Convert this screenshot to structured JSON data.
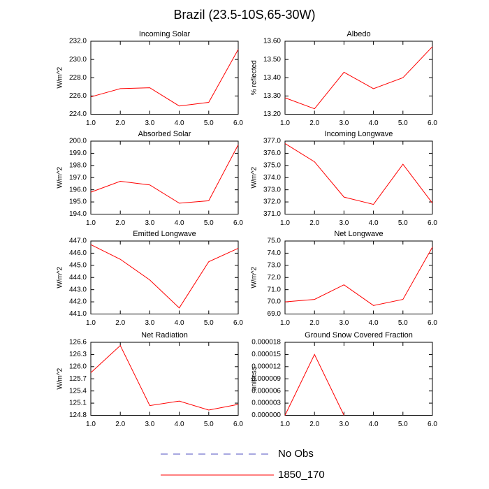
{
  "title": "Brazil (23.5-10S,65-30W)",
  "legend": [
    {
      "name": "No Obs",
      "color": "#5050c0",
      "dash": true
    },
    {
      "name": "1850_170",
      "color": "#ff0000",
      "dash": false
    }
  ],
  "chart_data": [
    {
      "type": "line",
      "title": "Incoming Solar",
      "y_label": "W/m^2",
      "x": [
        1,
        2,
        3,
        4,
        5,
        6
      ],
      "values": [
        225.9,
        226.8,
        226.9,
        224.9,
        225.3,
        231.1
      ],
      "color": "#ff0000",
      "xlim": [
        1,
        6
      ],
      "xticks": [
        {
          "value": 1,
          "label": "1.0"
        },
        {
          "value": 2,
          "label": "2.0"
        },
        {
          "value": 3,
          "label": "3.0"
        },
        {
          "value": 4,
          "label": "4.0"
        },
        {
          "value": 5,
          "label": "5.0"
        },
        {
          "value": 6,
          "label": "6.0"
        }
      ],
      "ylim": [
        224,
        232
      ],
      "yticks": [
        {
          "value": 224,
          "label": "224.0"
        },
        {
          "value": 226,
          "label": "226.0"
        },
        {
          "value": 228,
          "label": "228.0"
        },
        {
          "value": 230,
          "label": "230.0"
        },
        {
          "value": 232,
          "label": "232.0"
        }
      ]
    },
    {
      "type": "line",
      "title": "Albedo",
      "y_label": "% reflected",
      "x": [
        1,
        2,
        3,
        4,
        5,
        6
      ],
      "values": [
        13.29,
        13.23,
        13.43,
        13.34,
        13.4,
        13.57
      ],
      "color": "#ff0000",
      "xlim": [
        1,
        6
      ],
      "xticks": [
        {
          "value": 1,
          "label": "1.0"
        },
        {
          "value": 2,
          "label": "2.0"
        },
        {
          "value": 3,
          "label": "3.0"
        },
        {
          "value": 4,
          "label": "4.0"
        },
        {
          "value": 5,
          "label": "5.0"
        },
        {
          "value": 6,
          "label": "6.0"
        }
      ],
      "ylim": [
        13.2,
        13.6
      ],
      "yticks": [
        {
          "value": 13.2,
          "label": "13.20"
        },
        {
          "value": 13.3,
          "label": "13.30"
        },
        {
          "value": 13.4,
          "label": "13.40"
        },
        {
          "value": 13.5,
          "label": "13.50"
        },
        {
          "value": 13.6,
          "label": "13.60"
        }
      ]
    },
    {
      "type": "line",
      "title": "Absorbed Solar",
      "y_label": "W/m^2",
      "x": [
        1,
        2,
        3,
        4,
        5,
        6
      ],
      "values": [
        195.8,
        196.7,
        196.4,
        194.9,
        195.1,
        199.7
      ],
      "color": "#ff0000",
      "xlim": [
        1,
        6
      ],
      "xticks": [
        {
          "value": 1,
          "label": "1.0"
        },
        {
          "value": 2,
          "label": "2.0"
        },
        {
          "value": 3,
          "label": "3.0"
        },
        {
          "value": 4,
          "label": "4.0"
        },
        {
          "value": 5,
          "label": "5.0"
        },
        {
          "value": 6,
          "label": "6.0"
        }
      ],
      "ylim": [
        194,
        200
      ],
      "yticks": [
        {
          "value": 194,
          "label": "194.0"
        },
        {
          "value": 195,
          "label": "195.0"
        },
        {
          "value": 196,
          "label": "196.0"
        },
        {
          "value": 197,
          "label": "197.0"
        },
        {
          "value": 198,
          "label": "198.0"
        },
        {
          "value": 199,
          "label": "199.0"
        },
        {
          "value": 200,
          "label": "200.0"
        }
      ]
    },
    {
      "type": "line",
      "title": "Incoming Longwave",
      "y_label": "W/m^2",
      "x": [
        1,
        2,
        3,
        4,
        5,
        6
      ],
      "values": [
        376.8,
        375.3,
        372.4,
        371.8,
        375.1,
        371.9
      ],
      "color": "#ff0000",
      "xlim": [
        1,
        6
      ],
      "xticks": [
        {
          "value": 1,
          "label": "1.0"
        },
        {
          "value": 2,
          "label": "2.0"
        },
        {
          "value": 3,
          "label": "3.0"
        },
        {
          "value": 4,
          "label": "4.0"
        },
        {
          "value": 5,
          "label": "5.0"
        },
        {
          "value": 6,
          "label": "6.0"
        }
      ],
      "ylim": [
        371,
        377
      ],
      "yticks": [
        {
          "value": 371,
          "label": "371.0"
        },
        {
          "value": 372,
          "label": "372.0"
        },
        {
          "value": 373,
          "label": "373.0"
        },
        {
          "value": 374,
          "label": "374.0"
        },
        {
          "value": 375,
          "label": "375.0"
        },
        {
          "value": 376,
          "label": "376.0"
        },
        {
          "value": 377,
          "label": "377.0"
        }
      ]
    },
    {
      "type": "line",
      "title": "Emitted Longwave",
      "y_label": "W/m^2",
      "x": [
        1,
        2,
        3,
        4,
        5,
        6
      ],
      "values": [
        446.7,
        445.5,
        443.8,
        441.5,
        445.3,
        446.4
      ],
      "color": "#ff0000",
      "xlim": [
        1,
        6
      ],
      "xticks": [
        {
          "value": 1,
          "label": "1.0"
        },
        {
          "value": 2,
          "label": "2.0"
        },
        {
          "value": 3,
          "label": "3.0"
        },
        {
          "value": 4,
          "label": "4.0"
        },
        {
          "value": 5,
          "label": "5.0"
        },
        {
          "value": 6,
          "label": "6.0"
        }
      ],
      "ylim": [
        441,
        447
      ],
      "yticks": [
        {
          "value": 441,
          "label": "441.0"
        },
        {
          "value": 442,
          "label": "442.0"
        },
        {
          "value": 443,
          "label": "443.0"
        },
        {
          "value": 444,
          "label": "444.0"
        },
        {
          "value": 445,
          "label": "445.0"
        },
        {
          "value": 446,
          "label": "446.0"
        },
        {
          "value": 447,
          "label": "447.0"
        }
      ]
    },
    {
      "type": "line",
      "title": "Net Longwave",
      "y_label": "W/m^2",
      "x": [
        1,
        2,
        3,
        4,
        5,
        6
      ],
      "values": [
        70.0,
        70.2,
        71.4,
        69.7,
        70.2,
        74.5
      ],
      "color": "#ff0000",
      "xlim": [
        1,
        6
      ],
      "xticks": [
        {
          "value": 1,
          "label": "1.0"
        },
        {
          "value": 2,
          "label": "2.0"
        },
        {
          "value": 3,
          "label": "3.0"
        },
        {
          "value": 4,
          "label": "4.0"
        },
        {
          "value": 5,
          "label": "5.0"
        },
        {
          "value": 6,
          "label": "6.0"
        }
      ],
      "ylim": [
        69,
        75
      ],
      "yticks": [
        {
          "value": 69,
          "label": "69.0"
        },
        {
          "value": 70,
          "label": "70.0"
        },
        {
          "value": 71,
          "label": "71.0"
        },
        {
          "value": 72,
          "label": "72.0"
        },
        {
          "value": 73,
          "label": "73.0"
        },
        {
          "value": 74,
          "label": "74.0"
        },
        {
          "value": 75,
          "label": "75.0"
        }
      ]
    },
    {
      "type": "line",
      "title": "Net Radiation",
      "y_label": "W/m^2",
      "x": [
        1,
        2,
        3,
        4,
        5,
        6
      ],
      "values": [
        125.85,
        126.52,
        125.04,
        125.15,
        124.93,
        125.07
      ],
      "color": "#ff0000",
      "xlim": [
        1,
        6
      ],
      "xticks": [
        {
          "value": 1,
          "label": "1.0"
        },
        {
          "value": 2,
          "label": "2.0"
        },
        {
          "value": 3,
          "label": "3.0"
        },
        {
          "value": 4,
          "label": "4.0"
        },
        {
          "value": 5,
          "label": "5.0"
        },
        {
          "value": 6,
          "label": "6.0"
        }
      ],
      "ylim": [
        124.8,
        126.6
      ],
      "yticks": [
        {
          "value": 124.8,
          "label": "124.8"
        },
        {
          "value": 125.1,
          "label": "125.1"
        },
        {
          "value": 125.4,
          "label": "125.4"
        },
        {
          "value": 125.7,
          "label": "125.7"
        },
        {
          "value": 126.0,
          "label": "126.0"
        },
        {
          "value": 126.3,
          "label": "126.3"
        },
        {
          "value": 126.6,
          "label": "126.6"
        }
      ]
    },
    {
      "type": "line",
      "title": "Ground Snow Covered Fraction",
      "y_label": "unitless",
      "x": [
        1,
        2,
        3,
        4,
        5,
        6
      ],
      "values": [
        0,
        1.5e-05,
        0,
        null,
        null,
        null
      ],
      "color": "#ff0000",
      "xlim": [
        1,
        6
      ],
      "xticks": [
        {
          "value": 1,
          "label": "1.0"
        },
        {
          "value": 2,
          "label": "2.0"
        },
        {
          "value": 3,
          "label": "3.0"
        },
        {
          "value": 4,
          "label": "4.0"
        },
        {
          "value": 5,
          "label": "5.0"
        },
        {
          "value": 6,
          "label": "6.0"
        }
      ],
      "ylim": [
        0,
        1.8e-05
      ],
      "yticks": [
        {
          "value": 0,
          "label": "0.000000"
        },
        {
          "value": 3e-06,
          "label": "0.000003"
        },
        {
          "value": 6e-06,
          "label": "0.000006"
        },
        {
          "value": 9e-06,
          "label": "0.000009"
        },
        {
          "value": 1.2e-05,
          "label": "0.000012"
        },
        {
          "value": 1.5e-05,
          "label": "0.000015"
        },
        {
          "value": 1.8e-05,
          "label": "0.000018"
        }
      ]
    }
  ]
}
